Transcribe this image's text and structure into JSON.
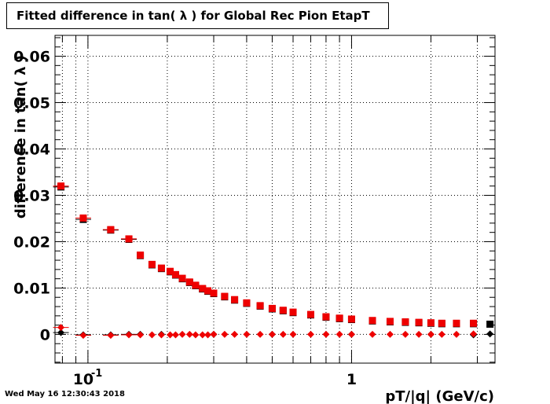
{
  "chart_data": {
    "type": "scatter",
    "title": "Fitted difference in tan( λ ) for Global Rec Pion EtapT",
    "xlabel": "pT/|q| (GeV/c)",
    "ylabel": "difference in tan( λ )",
    "x_scale": "log",
    "xlim": [
      0.075,
      3.5
    ],
    "ylim": [
      -0.0062,
      0.0645
    ],
    "grid": true,
    "y_ticks": [
      {
        "value": 0,
        "label": "0"
      },
      {
        "value": 0.01,
        "label": "0.01"
      },
      {
        "value": 0.02,
        "label": "0.02"
      },
      {
        "value": 0.03,
        "label": "0.03"
      },
      {
        "value": 0.04,
        "label": "0.04"
      },
      {
        "value": 0.05,
        "label": "0.05"
      },
      {
        "value": 0.06,
        "label": "0.06"
      }
    ],
    "x_tick_labels": [
      {
        "value": 0.1,
        "label": "10",
        "exponent": "-1"
      },
      {
        "value": 1,
        "label": "1"
      }
    ],
    "series": [
      {
        "marker": "square",
        "color": "#000000",
        "points": [
          [
            0.079,
            0.0318
          ],
          [
            0.096,
            0.0248
          ],
          [
            0.122,
            0.0225
          ],
          [
            0.143,
            0.0205
          ],
          [
            0.158,
            0.017
          ],
          [
            0.175,
            0.015
          ],
          [
            0.19,
            0.0142
          ],
          [
            0.205,
            0.0135
          ],
          [
            0.215,
            0.0128
          ],
          [
            0.228,
            0.012
          ],
          [
            0.243,
            0.0112
          ],
          [
            0.256,
            0.0105
          ],
          [
            0.272,
            0.0098
          ],
          [
            0.285,
            0.0093
          ],
          [
            0.3,
            0.0088
          ],
          [
            0.33,
            0.0081
          ],
          [
            0.36,
            0.0074
          ],
          [
            0.4,
            0.0067
          ],
          [
            0.45,
            0.0061
          ],
          [
            0.5,
            0.0055
          ],
          [
            0.55,
            0.0051
          ],
          [
            0.6,
            0.0047
          ],
          [
            0.7,
            0.0042
          ],
          [
            0.8,
            0.0037
          ],
          [
            0.9,
            0.0034
          ],
          [
            1.0,
            0.0032
          ],
          [
            1.2,
            0.0029
          ],
          [
            1.4,
            0.0027
          ],
          [
            1.6,
            0.0026
          ],
          [
            1.8,
            0.0025
          ],
          [
            2.0,
            0.0024
          ],
          [
            2.2,
            0.0023
          ],
          [
            2.5,
            0.0023
          ],
          [
            2.9,
            0.0023
          ],
          [
            3.35,
            0.0022
          ]
        ]
      },
      {
        "marker": "square",
        "color": "#ee0000",
        "points": [
          [
            0.079,
            0.032
          ],
          [
            0.096,
            0.0251
          ],
          [
            0.122,
            0.0226
          ],
          [
            0.143,
            0.0206
          ],
          [
            0.158,
            0.0171
          ],
          [
            0.175,
            0.0151
          ],
          [
            0.19,
            0.0143
          ],
          [
            0.205,
            0.0136
          ],
          [
            0.215,
            0.0129
          ],
          [
            0.228,
            0.0121
          ],
          [
            0.243,
            0.0113
          ],
          [
            0.256,
            0.0106
          ],
          [
            0.272,
            0.0099
          ],
          [
            0.285,
            0.0094
          ],
          [
            0.3,
            0.0089
          ],
          [
            0.33,
            0.0082
          ],
          [
            0.36,
            0.0075
          ],
          [
            0.4,
            0.0068
          ],
          [
            0.45,
            0.0062
          ],
          [
            0.5,
            0.0056
          ],
          [
            0.55,
            0.0052
          ],
          [
            0.6,
            0.0048
          ],
          [
            0.7,
            0.0043
          ],
          [
            0.8,
            0.0038
          ],
          [
            0.9,
            0.0035
          ],
          [
            1.0,
            0.0033
          ],
          [
            1.2,
            0.003
          ],
          [
            1.4,
            0.0028
          ],
          [
            1.6,
            0.0027
          ],
          [
            1.8,
            0.0026
          ],
          [
            2.0,
            0.0025
          ],
          [
            2.2,
            0.0024
          ],
          [
            2.5,
            0.0024
          ],
          [
            2.9,
            0.0024
          ]
        ]
      },
      {
        "marker": "diamond",
        "color": "#000000",
        "points": [
          [
            0.079,
            0.0004
          ],
          [
            0.096,
            -0.0001
          ],
          [
            0.122,
            -0.0001
          ],
          [
            0.143,
            0.0
          ],
          [
            0.158,
            0.0
          ],
          [
            0.19,
            0.0
          ],
          [
            0.3,
            0.0
          ],
          [
            0.5,
            0.0
          ],
          [
            1.0,
            0.0
          ],
          [
            2.0,
            0.0
          ],
          [
            2.9,
            -0.0001
          ],
          [
            3.35,
            0.0001
          ]
        ]
      },
      {
        "marker": "diamond",
        "color": "#ee0000",
        "points": [
          [
            0.079,
            0.0015
          ],
          [
            0.096,
            -0.0002
          ],
          [
            0.122,
            -0.0002
          ],
          [
            0.143,
            -0.0001
          ],
          [
            0.158,
            -0.0001
          ],
          [
            0.175,
            -0.0001
          ],
          [
            0.19,
            -0.0001
          ],
          [
            0.205,
            -0.0001
          ],
          [
            0.215,
            -0.0001
          ],
          [
            0.228,
            0.0
          ],
          [
            0.243,
            0.0
          ],
          [
            0.256,
            -0.0001
          ],
          [
            0.272,
            -0.0001
          ],
          [
            0.285,
            -0.0001
          ],
          [
            0.3,
            0.0
          ],
          [
            0.33,
            0.0
          ],
          [
            0.36,
            0.0
          ],
          [
            0.4,
            0.0
          ],
          [
            0.45,
            0.0
          ],
          [
            0.5,
            0.0
          ],
          [
            0.55,
            0.0
          ],
          [
            0.6,
            0.0
          ],
          [
            0.7,
            0.0
          ],
          [
            0.8,
            0.0
          ],
          [
            0.9,
            0.0
          ],
          [
            1.0,
            0.0
          ],
          [
            1.2,
            0.0
          ],
          [
            1.4,
            0.0
          ],
          [
            1.6,
            0.0
          ],
          [
            1.8,
            0.0
          ],
          [
            2.0,
            0.0
          ],
          [
            2.2,
            0.0
          ],
          [
            2.5,
            0.0
          ],
          [
            2.9,
            0.0001
          ]
        ]
      }
    ]
  },
  "footer": {
    "timestamp": "Wed May 16 12:30:43 2018"
  }
}
